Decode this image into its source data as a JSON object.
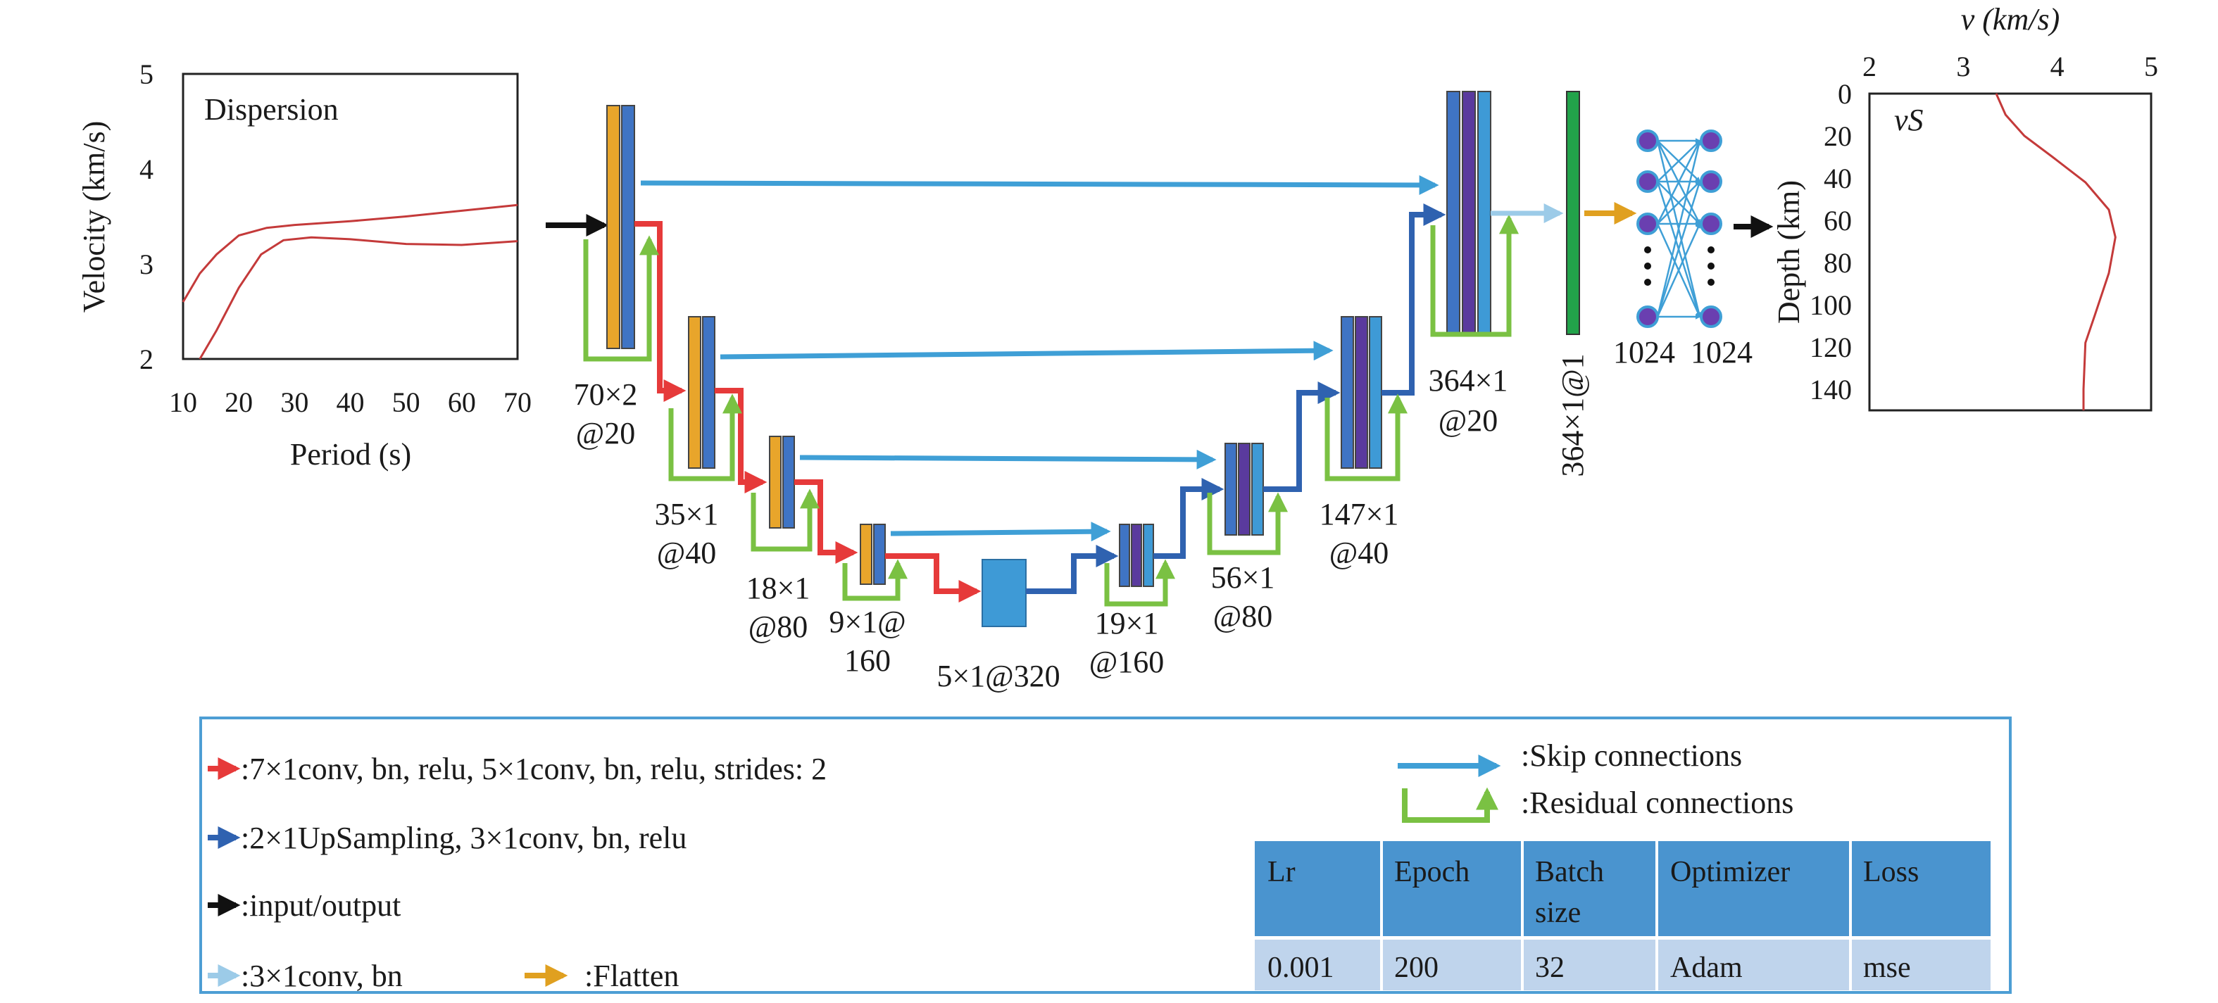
{
  "colors": {
    "conv": "#e63a3a",
    "upsample": "#2f62b0",
    "io": "#111111",
    "conv_bn": "#9ccbe8",
    "flatten": "#e0a020",
    "skip": "#3f9fd6",
    "residual": "#7ac143",
    "curve": "#c43a3a",
    "enc_block_a": "#e8a52b",
    "enc_block_b": "#3f74c4",
    "dec_block_mid": "#5a3a9e",
    "bottleneck": "#3e9ad6",
    "dense_layer": "#22a34a",
    "node": "#6a3fb0",
    "legend_border": "#4d9ed4",
    "table_header": "#4a94cf",
    "table_row": "#bfd4ec"
  },
  "dispersion_panel": {
    "title": "Dispersion",
    "xlabel": "Period (s)",
    "ylabel": "Velocity (km/s)",
    "xticks": [
      "10",
      "20",
      "30",
      "40",
      "50",
      "60",
      "70"
    ],
    "yticks": [
      "2",
      "3",
      "4",
      "5"
    ],
    "xlim": [
      10,
      70
    ],
    "ylim": [
      2,
      5
    ],
    "curves": [
      [
        [
          10,
          2.6
        ],
        [
          13,
          2.9
        ],
        [
          16,
          3.1
        ],
        [
          20,
          3.3
        ],
        [
          25,
          3.38
        ],
        [
          30,
          3.41
        ],
        [
          40,
          3.45
        ],
        [
          50,
          3.5
        ],
        [
          60,
          3.56
        ],
        [
          70,
          3.62
        ]
      ],
      [
        [
          13,
          2.0
        ],
        [
          16,
          2.3
        ],
        [
          20,
          2.75
        ],
        [
          24,
          3.1
        ],
        [
          28,
          3.25
        ],
        [
          33,
          3.28
        ],
        [
          40,
          3.26
        ],
        [
          50,
          3.21
        ],
        [
          60,
          3.2
        ],
        [
          70,
          3.24
        ]
      ]
    ]
  },
  "velocity_panel": {
    "xlabel": "v (km/s)",
    "ylabel": "Depth (km)",
    "series_label": "vS",
    "xticks": [
      "2",
      "3",
      "4",
      "5"
    ],
    "yticks": [
      "0",
      "20",
      "40",
      "60",
      "80",
      "100",
      "120",
      "140"
    ],
    "xlim": [
      2,
      5
    ],
    "ylim": [
      0,
      150
    ],
    "profile": [
      [
        3.35,
        0
      ],
      [
        3.45,
        10
      ],
      [
        3.65,
        20
      ],
      [
        3.95,
        30
      ],
      [
        4.3,
        42
      ],
      [
        4.55,
        55
      ],
      [
        4.62,
        68
      ],
      [
        4.55,
        85
      ],
      [
        4.4,
        105
      ],
      [
        4.3,
        118
      ],
      [
        4.28,
        140
      ],
      [
        4.28,
        150
      ]
    ]
  },
  "layer_labels": {
    "enc1": [
      "70×2",
      "@20"
    ],
    "enc2": [
      "35×1",
      "@40"
    ],
    "enc3": [
      "18×1",
      "@80"
    ],
    "enc4": [
      "9×1@",
      "160"
    ],
    "bottleneck": [
      "5×1@320"
    ],
    "dec4": [
      "19×1",
      "@160"
    ],
    "dec3": [
      "56×1",
      "@80"
    ],
    "dec2": [
      "147×1",
      "@40"
    ],
    "dec1": [
      "364×1",
      "@20"
    ],
    "dense": "364×1@1",
    "fc1": "1024",
    "fc2": "1024"
  },
  "legend": {
    "conv": ":7×1conv, bn, relu, 5×1conv, bn, relu, strides: 2",
    "upsample": ":2×1UpSampling, 3×1conv, bn, relu",
    "io": ":input/output",
    "conv_bn": ":3×1conv, bn",
    "flatten": ":Flatten",
    "skip": ":Skip connections",
    "residual": ":Residual connections"
  },
  "hyperparams": {
    "headers": [
      "Lr",
      "Epoch",
      "Batch size",
      "Optimizer",
      "Loss"
    ],
    "header_lines": [
      [
        "Lr"
      ],
      [
        "Epoch"
      ],
      [
        "Batch",
        "size"
      ],
      [
        "Optimizer"
      ],
      [
        "Loss"
      ]
    ],
    "values": [
      "0.001",
      "200",
      "32",
      "Adam",
      "mse"
    ]
  }
}
